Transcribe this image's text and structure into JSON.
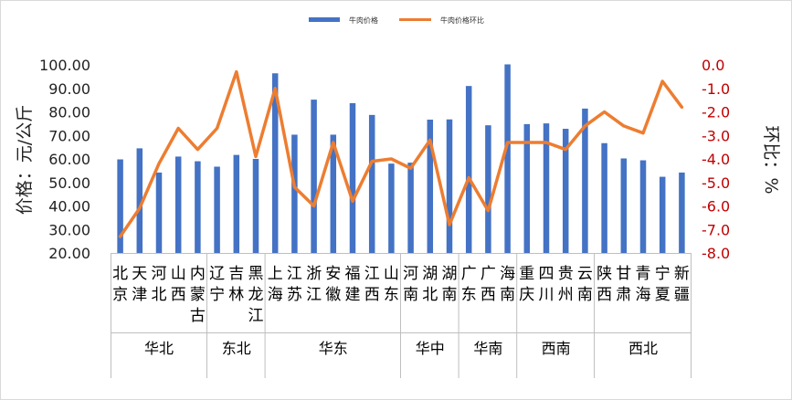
{
  "chart_data": {
    "type": "bar+line",
    "legend": [
      "牛肉价格",
      "牛肉价格环比"
    ],
    "legend_position": "top",
    "colors": {
      "bar": "#4472C4",
      "line": "#ED7D31",
      "right_axis_text": "#C00000"
    },
    "provinces": [
      [
        "北",
        "京"
      ],
      [
        "天",
        "津"
      ],
      [
        "河",
        "北"
      ],
      [
        "山",
        "西"
      ],
      [
        "内",
        "蒙",
        "古"
      ],
      [
        "辽",
        "宁"
      ],
      [
        "吉",
        "林"
      ],
      [
        "黑",
        "龙",
        "江"
      ],
      [
        "上",
        "海"
      ],
      [
        "江",
        "苏"
      ],
      [
        "浙",
        "江"
      ],
      [
        "安",
        "徽"
      ],
      [
        "福",
        "建"
      ],
      [
        "江",
        "西"
      ],
      [
        "山",
        "东"
      ],
      [
        "河",
        "南"
      ],
      [
        "湖",
        "北"
      ],
      [
        "湖",
        "南"
      ],
      [
        "广",
        "东"
      ],
      [
        "广",
        "西"
      ],
      [
        "海",
        "南"
      ],
      [
        "重",
        "庆"
      ],
      [
        "四",
        "川"
      ],
      [
        "贵",
        "州"
      ],
      [
        "云",
        "南"
      ],
      [
        "陕",
        "西"
      ],
      [
        "甘",
        "肃"
      ],
      [
        "青",
        "海"
      ],
      [
        "宁",
        "夏"
      ],
      [
        "新",
        "疆"
      ]
    ],
    "groups": [
      {
        "name": "华北",
        "count": 5
      },
      {
        "name": "东北",
        "count": 3
      },
      {
        "name": "华东",
        "count": 7
      },
      {
        "name": "华中",
        "count": 3
      },
      {
        "name": "华南",
        "count": 3
      },
      {
        "name": "西南",
        "count": 4
      },
      {
        "name": "西北",
        "count": 5
      }
    ],
    "series": [
      {
        "name": "牛肉价格",
        "axis": "left",
        "kind": "bar",
        "values": [
          59.8,
          64.5,
          54.2,
          61.0,
          59.0,
          56.7,
          61.7,
          60.0,
          96.4,
          70.3,
          85.2,
          70.3,
          83.7,
          78.7,
          58.0,
          58.4,
          76.7,
          76.8,
          91.0,
          74.3,
          100.2,
          74.8,
          75.1,
          72.8,
          81.4,
          66.7,
          60.2,
          59.4,
          52.4,
          54.2
        ]
      },
      {
        "name": "牛肉价格环比",
        "axis": "right",
        "kind": "line",
        "values": [
          -7.3,
          -6.1,
          -4.2,
          -2.7,
          -3.6,
          -2.7,
          -0.3,
          -3.9,
          -1.0,
          -5.2,
          -6.0,
          -3.3,
          -5.8,
          -4.1,
          -4.0,
          -4.4,
          -3.2,
          -6.8,
          -4.8,
          -6.2,
          -3.3,
          -3.3,
          -3.3,
          -3.6,
          -2.6,
          -2.0,
          -2.6,
          -2.9,
          -0.7,
          -1.8
        ]
      }
    ],
    "y_left": {
      "title": "价格：元/公斤",
      "min": 20,
      "max": 100,
      "step": 10,
      "ticks": [
        "20.00",
        "30.00",
        "40.00",
        "50.00",
        "60.00",
        "70.00",
        "80.00",
        "90.00",
        "100.00"
      ]
    },
    "y_right": {
      "title": "环比：%",
      "min": -8,
      "max": 0,
      "step": 1,
      "ticks": [
        "-8.0",
        "-7.0",
        "-6.0",
        "-5.0",
        "-4.0",
        "-3.0",
        "-2.0",
        "-1.0",
        "0.0"
      ]
    },
    "grid": false
  }
}
